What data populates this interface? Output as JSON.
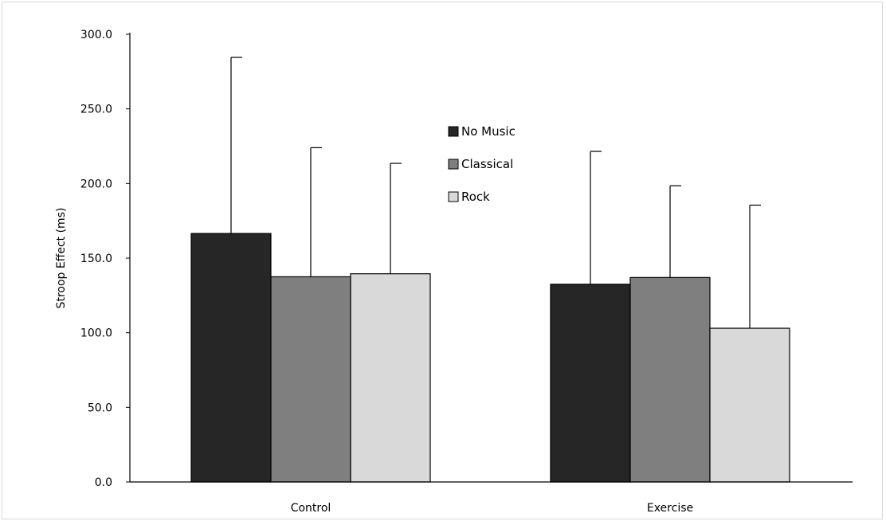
{
  "chart_data": {
    "type": "bar",
    "title": "",
    "xlabel": "",
    "ylabel": "Stroop Effect (ms)",
    "ylim": [
      0,
      300
    ],
    "y_ticks": [
      "0.0",
      "50.0",
      "100.0",
      "150.0",
      "200.0",
      "250.0",
      "300.0"
    ],
    "y_tick_values": [
      0,
      50,
      100,
      150,
      200,
      250,
      300
    ],
    "grid": false,
    "legend_position": "center-top",
    "categories": [
      "Control",
      "Exercise"
    ],
    "series": [
      {
        "name": "No Music",
        "color": "#262626",
        "values": [
          166.5,
          132.5
        ],
        "error_upper": [
          284.5,
          221.5
        ]
      },
      {
        "name": "Classical",
        "color": "#7f7f7f",
        "values": [
          137.5,
          137.0
        ],
        "error_upper": [
          224.0,
          198.5
        ]
      },
      {
        "name": "Rock",
        "color": "#d9d9d9",
        "values": [
          139.5,
          103.0
        ],
        "error_upper": [
          213.5,
          185.5
        ]
      }
    ]
  }
}
